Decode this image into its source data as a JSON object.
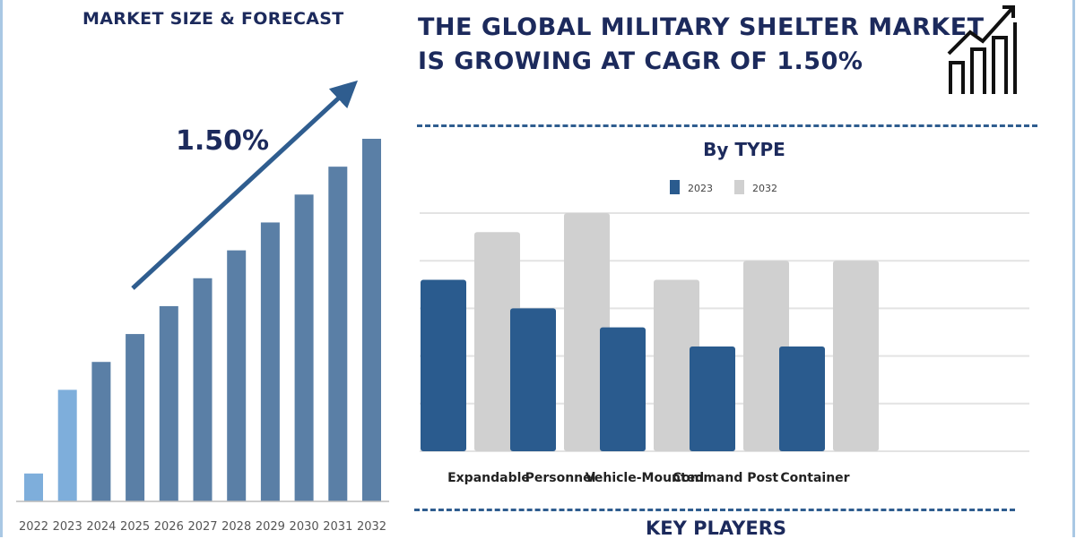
{
  "left_title": "MARKET SIZE & FORECAST",
  "headline": [
    "THE GLOBAL MILITARY SHELTER MARKET",
    "IS GROWING AT CAGR OF 1.50%"
  ],
  "cagr_label": "1.50%",
  "key_players": "KEY PLAYERS",
  "chart_data": [
    {
      "type": "bar",
      "title": "",
      "categories": [
        "2022",
        "2023",
        "2024",
        "2025",
        "2026",
        "2027",
        "2028",
        "2029",
        "2030",
        "2031",
        "2032"
      ],
      "values": [
        1,
        4,
        5,
        6,
        7,
        8,
        9,
        10,
        11,
        12,
        13
      ],
      "colors": {
        "historic": "#7eaedb",
        "forecast": "#5a7fa6"
      },
      "grid": false
    },
    {
      "type": "bar",
      "title": "By TYPE",
      "categories": [
        "Expandable",
        "Personnel",
        "Vehicle-Mounted",
        "Command Post",
        "Container"
      ],
      "series": [
        {
          "name": "2023",
          "values": [
            3.6,
            3.0,
            2.6,
            2.2,
            2.2
          ],
          "color": "#2a5b8e"
        },
        {
          "name": "2032",
          "values": [
            4.6,
            5.0,
            3.6,
            4.0,
            4.0
          ],
          "color": "#d0d0d0"
        }
      ],
      "ylim": [
        0,
        5
      ],
      "grid": true,
      "legend": "top"
    }
  ]
}
